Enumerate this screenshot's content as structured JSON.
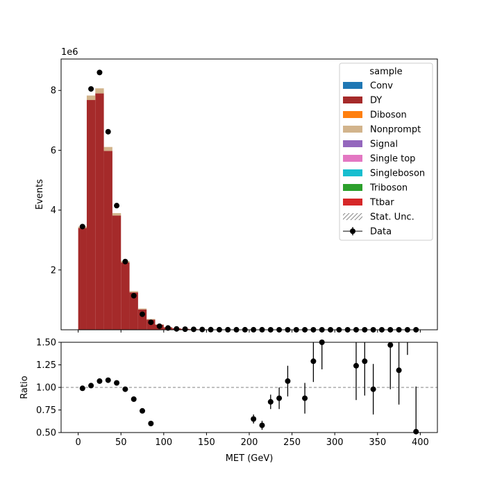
{
  "chart_data": [
    {
      "type": "bar",
      "stacked": true,
      "ylabel": "Events",
      "y_multiplier_label": "1e6",
      "ylim": [
        0,
        9.05
      ],
      "xlim": [
        -20,
        420
      ],
      "y_ticks": [
        2,
        4,
        6,
        8
      ],
      "bin_width": 10,
      "legend": {
        "title": "sample",
        "placement": "top-right",
        "entries": [
          {
            "label": "Conv",
            "color": "#1f77b4",
            "kind": "patch"
          },
          {
            "label": "DY",
            "color": "#a52a2a",
            "kind": "patch"
          },
          {
            "label": "Diboson",
            "color": "#ff7f0e",
            "kind": "patch"
          },
          {
            "label": "Nonprompt",
            "color": "#d2b48c",
            "kind": "patch"
          },
          {
            "label": "Signal",
            "color": "#9467bd",
            "kind": "patch"
          },
          {
            "label": "Single top",
            "color": "#e377c2",
            "kind": "patch"
          },
          {
            "label": "Singleboson",
            "color": "#17becf",
            "kind": "patch"
          },
          {
            "label": "Triboson",
            "color": "#2ca02c",
            "kind": "patch"
          },
          {
            "label": "Ttbar",
            "color": "#d62728",
            "kind": "patch"
          },
          {
            "label": "Stat. Unc.",
            "color": "#888888",
            "kind": "hatch"
          },
          {
            "label": "Data",
            "color": "#000000",
            "kind": "errorbar"
          }
        ]
      },
      "bin_starts": [
        0,
        10,
        20,
        30,
        40,
        50,
        60,
        70,
        80,
        90,
        100,
        110,
        120,
        130,
        140,
        150,
        160,
        170,
        180,
        190,
        200,
        210,
        220,
        230,
        240,
        250,
        260,
        270,
        280,
        290,
        300,
        310,
        320,
        330,
        340,
        350,
        360,
        370,
        380,
        390
      ],
      "series": [
        {
          "name": "DY",
          "values": [
            3.4,
            7.68,
            7.9,
            5.98,
            3.82,
            2.25,
            1.25,
            0.68,
            0.34,
            0.17,
            0.08,
            0.05,
            0.03,
            0.02,
            0.015,
            0.01,
            0.008,
            0.006,
            0.005,
            0.004,
            0.003,
            0.003,
            0.002,
            0.002,
            0.002,
            0.002,
            0.001,
            0.001,
            0.001,
            0.001,
            0.001,
            0.001,
            0.001,
            0.001,
            0.001,
            0.001,
            0.001,
            0.001,
            0.001,
            0.001
          ]
        },
        {
          "name": "Nonprompt",
          "values": [
            0.05,
            0.15,
            0.17,
            0.13,
            0.08,
            0.05,
            0.04,
            0.03,
            0.02,
            0.01,
            0.01,
            0,
            0,
            0,
            0,
            0,
            0,
            0,
            0,
            0,
            0,
            0,
            0,
            0,
            0,
            0,
            0,
            0,
            0,
            0,
            0,
            0,
            0,
            0,
            0,
            0,
            0,
            0,
            0,
            0
          ]
        }
      ],
      "data_points": {
        "name": "Data",
        "x": [
          5,
          15,
          25,
          35,
          45,
          55,
          65,
          75,
          85,
          95,
          105,
          115,
          125,
          135,
          145,
          155,
          165,
          175,
          185,
          195,
          205,
          215,
          225,
          235,
          245,
          255,
          265,
          275,
          285,
          295,
          305,
          315,
          325,
          335,
          345,
          355,
          365,
          375,
          385,
          395
        ],
        "y": [
          3.45,
          8.05,
          8.6,
          6.62,
          4.15,
          2.28,
          1.14,
          0.52,
          0.25,
          0.12,
          0.06,
          0.03,
          0.02,
          0.015,
          0.01,
          0.005,
          0.004,
          0.003,
          0.002,
          0.002,
          0.002,
          0.002,
          0.001,
          0.001,
          0.001,
          0.001,
          0.001,
          0.001,
          0.001,
          0.001,
          0.001,
          0.001,
          0.001,
          0.001,
          0.001,
          0.001,
          0.001,
          0.001,
          0.001,
          0.001
        ]
      }
    },
    {
      "type": "scatter",
      "xlabel": "MET (GeV)",
      "ylabel": "Ratio",
      "xlim": [
        -20,
        420
      ],
      "ylim": [
        0.5,
        1.5
      ],
      "x_ticks": [
        0,
        50,
        100,
        150,
        200,
        250,
        300,
        350,
        400
      ],
      "y_ticks": [
        "0.50",
        "0.75",
        "1.00",
        "1.25",
        "1.50"
      ],
      "reference_line": 1.0,
      "points": [
        {
          "x": 5,
          "y": 0.99,
          "err": 0.005
        },
        {
          "x": 15,
          "y": 1.02,
          "err": 0.005
        },
        {
          "x": 25,
          "y": 1.07,
          "err": 0.005
        },
        {
          "x": 35,
          "y": 1.08,
          "err": 0.005
        },
        {
          "x": 45,
          "y": 1.05,
          "err": 0.005
        },
        {
          "x": 55,
          "y": 0.98,
          "err": 0.005
        },
        {
          "x": 65,
          "y": 0.87,
          "err": 0.005
        },
        {
          "x": 75,
          "y": 0.74,
          "err": 0.005
        },
        {
          "x": 85,
          "y": 0.6,
          "err": 0.005
        },
        {
          "x": 205,
          "y": 0.65,
          "err": 0.05
        },
        {
          "x": 215,
          "y": 0.58,
          "err": 0.05
        },
        {
          "x": 225,
          "y": 0.84,
          "err": 0.08
        },
        {
          "x": 235,
          "y": 0.88,
          "err": 0.12
        },
        {
          "x": 245,
          "y": 1.07,
          "err": 0.17
        },
        {
          "x": 265,
          "y": 0.88,
          "err": 0.17
        },
        {
          "x": 275,
          "y": 1.29,
          "err": 0.23
        },
        {
          "x": 285,
          "y": 1.5,
          "err": 0.3
        },
        {
          "x": 325,
          "y": 1.24,
          "err": 0.38
        },
        {
          "x": 335,
          "y": 1.29,
          "err": 0.38
        },
        {
          "x": 345,
          "y": 0.98,
          "err": 0.28
        },
        {
          "x": 365,
          "y": 1.47,
          "err": 0.49
        },
        {
          "x": 375,
          "y": 1.19,
          "err": 0.38
        },
        {
          "x": 385,
          "y": 1.6,
          "err": 0.24
        },
        {
          "x": 395,
          "y": 0.51,
          "err": 0.5
        }
      ]
    }
  ]
}
